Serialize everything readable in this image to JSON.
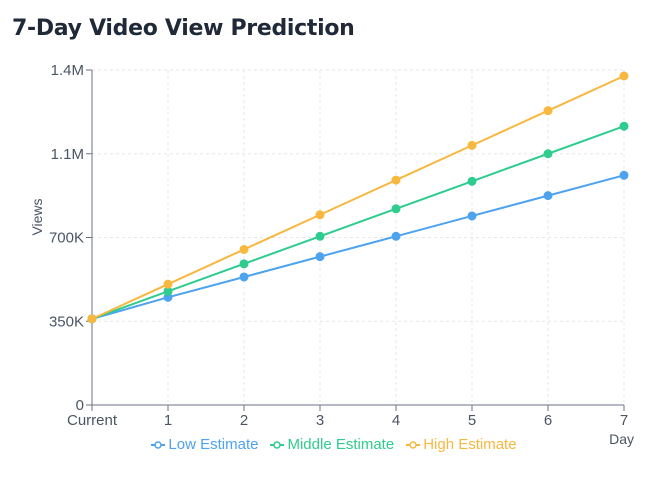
{
  "chart_data": {
    "type": "line",
    "title": "7-Day Video View Prediction",
    "xlabel": "Day",
    "ylabel": "Views",
    "categories": [
      "Current",
      "1",
      "2",
      "3",
      "4",
      "5",
      "6",
      "7"
    ],
    "ylim": [
      0,
      1400000
    ],
    "yticks": [
      {
        "value": 0,
        "label": "0"
      },
      {
        "value": 350000,
        "label": "350K"
      },
      {
        "value": 700000,
        "label": "700K"
      },
      {
        "value": 1050000,
        "label": "1.1M"
      },
      {
        "value": 1400000,
        "label": "1.4M"
      }
    ],
    "grid": true,
    "legend_position": "bottom-center",
    "series": [
      {
        "name": "Low Estimate",
        "color": "#4da3ee",
        "values": [
          360000,
          450000,
          535000,
          620000,
          705000,
          790000,
          875000,
          960000
        ]
      },
      {
        "name": "Middle Estimate",
        "color": "#2ecc8e",
        "values": [
          360000,
          475000,
          590000,
          705000,
          820000,
          935000,
          1050000,
          1165000
        ]
      },
      {
        "name": "High Estimate",
        "color": "#f8b73f",
        "values": [
          360000,
          505000,
          650000,
          795000,
          940000,
          1085000,
          1230000,
          1375000
        ]
      }
    ]
  }
}
